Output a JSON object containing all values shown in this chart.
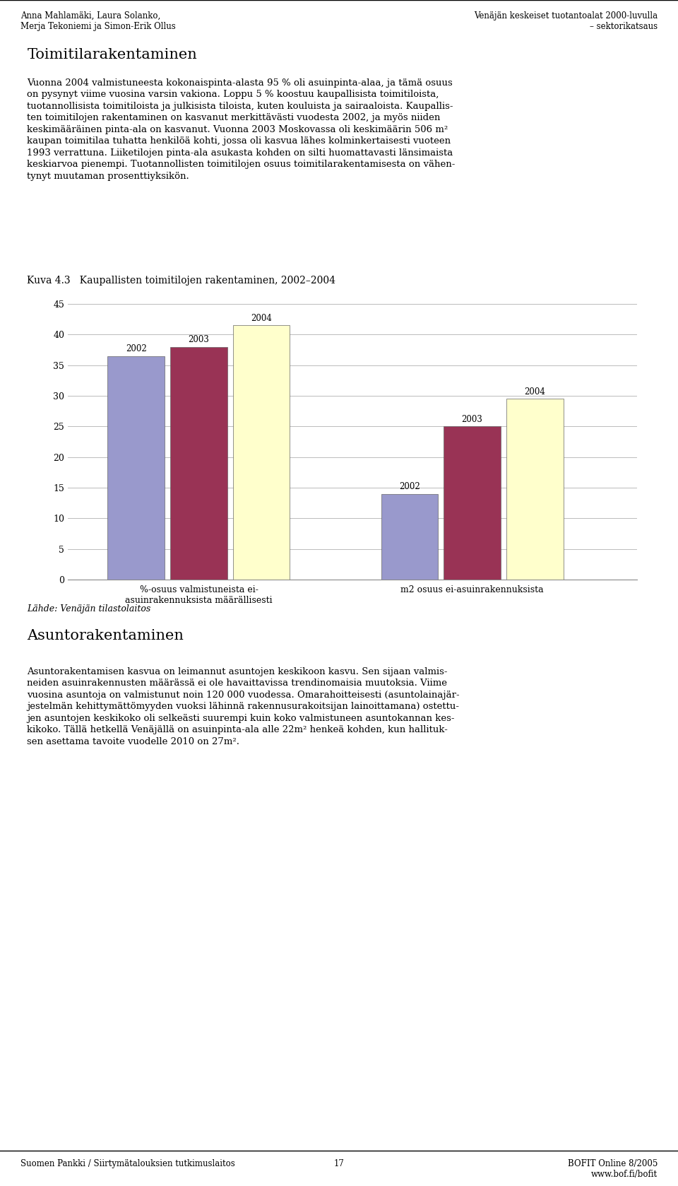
{
  "title": "Kuva 4.3   Kaupallisten toimitilojen rakentaminen, 2002–2004",
  "groups": [
    {
      "label": "%-osuus valmistuneista ei-\nasuinrakennuksista määrällisesti",
      "values": [
        36.5,
        38.0,
        41.5
      ]
    },
    {
      "label": "m2 osuus ei-asuinrakennuksista",
      "values": [
        14.0,
        25.0,
        29.5
      ]
    }
  ],
  "years": [
    "2002",
    "2003",
    "2004"
  ],
  "bar_colors": [
    "#9999cc",
    "#993355",
    "#ffffcc"
  ],
  "ylim": [
    0,
    45
  ],
  "yticks": [
    0,
    5,
    10,
    15,
    20,
    25,
    30,
    35,
    40,
    45
  ],
  "grid_color": "#bbbbbb",
  "header_left": "Anna Mahlamäki, Laura Solanko,\nMerja Tekoniemi ja Simon-Erik Ollus",
  "header_right": "Venäjän keskeiset tuotantoalat 2000-luvulla\n– sektorikatsaus",
  "footer_left": "Suomen Pankki / Siirtymätalouksien tutkimuslaitos",
  "footer_center": "17",
  "footer_right": "BOFIT Online 8/2005\nwww.bof.fi/bofit",
  "source_label": "Lähde: Venäjän tilastolaitos",
  "main_title": "Toimitilarakentaminen",
  "main_text1": "Vuonna 2004 valmistuneesta kokonaispinta-alasta 95 % oli asuinpinta-alaa, ja tämä osuus\non pysynyt viime vuosina varsin vakiona. Loppu 5 % koostuu kaupallisista toimitiloista,\ntuotannollisista toimitiloista ja julkisista tiloista, kuten kouluista ja sairaaloista. Kaupallis-\nten toimitilojen rakentaminen on kasvanut merkittävästi vuodesta 2002, ja myös niiden\nkeskimääräinen pinta-ala on kasvanut. Vuonna 2003 Moskovassa oli keskimäärin 506 m²\nkaupan toimitilaa tuhatta henkilöä kohti, jossa oli kasvua lähes kolminkertaisesti vuoteen\n1993 verrattuna. Liiketilojen pinta-ala asukasta kohden on silti huomattavasti länsimaista\nkeskiarvoa pienempi. Tuotannollisten toimitilojen osuus toimitilarakentamisesta on vähen-\ntynyt muutaman prosenttiyksikön.",
  "main_title2": "Asuntorakentaminen",
  "main_text2": "Asuntorakentamisen kasvua on leimannut asuntojen keskikoon kasvu. Sen sijaan valmis-\nneiden asuinrakennusten määrässä ei ole havaittavissa trendinomaisia muutoksia. Viime\nvuosina asuntoja on valmistunut noin 120 000 vuodessa. Omarahoitteisesti (asuntolainajär-\njestelmän kehittymättömyyden vuoksi lähinnä rakennusurakoitsijan lainoittamana) ostettu-\njen asuntojen keskikoko oli selkeästi suurempi kuin koko valmistuneen asuntokannan kes-\nkikoko. Tällä hetkellä Venäjällä on asuinpinta-ala alle 22m² henkeä kohden, kun hallituk-\nsen asettama tavoite vuodelle 2010 on 27m²."
}
